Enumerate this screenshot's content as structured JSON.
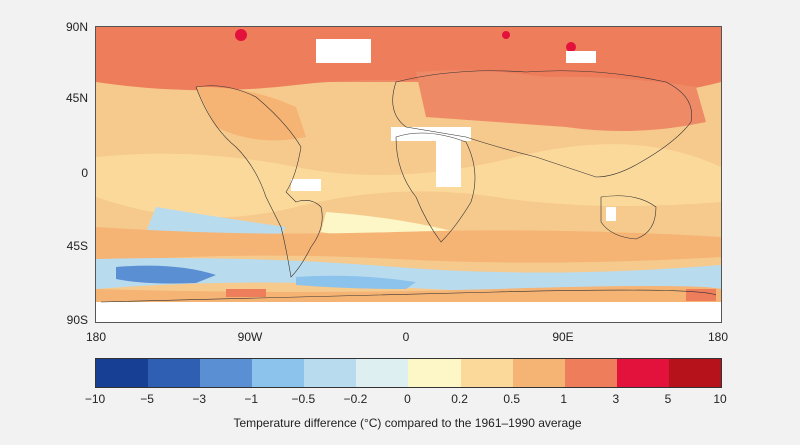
{
  "map": {
    "lat_labels": [
      "90N",
      "45N",
      "0",
      "45S",
      "90S"
    ],
    "lon_labels": [
      "180",
      "90W",
      "0",
      "90E",
      "180"
    ]
  },
  "legend": {
    "title": "Temperature difference (°C) compared to the 1961–1990 average",
    "ticks": [
      "−10",
      "−5",
      "−3",
      "−1",
      "−0.5",
      "−0.2",
      "0",
      "0.2",
      "0.5",
      "1",
      "3",
      "5",
      "10"
    ],
    "colors": [
      "#173f93",
      "#2f5fb3",
      "#5a8fd3",
      "#8cc3ec",
      "#b9dbee",
      "#deeff2",
      "#fdf6c6",
      "#fbd99a",
      "#f5b374",
      "#ee7d5c",
      "#e3123c",
      "#b5121b"
    ]
  }
}
